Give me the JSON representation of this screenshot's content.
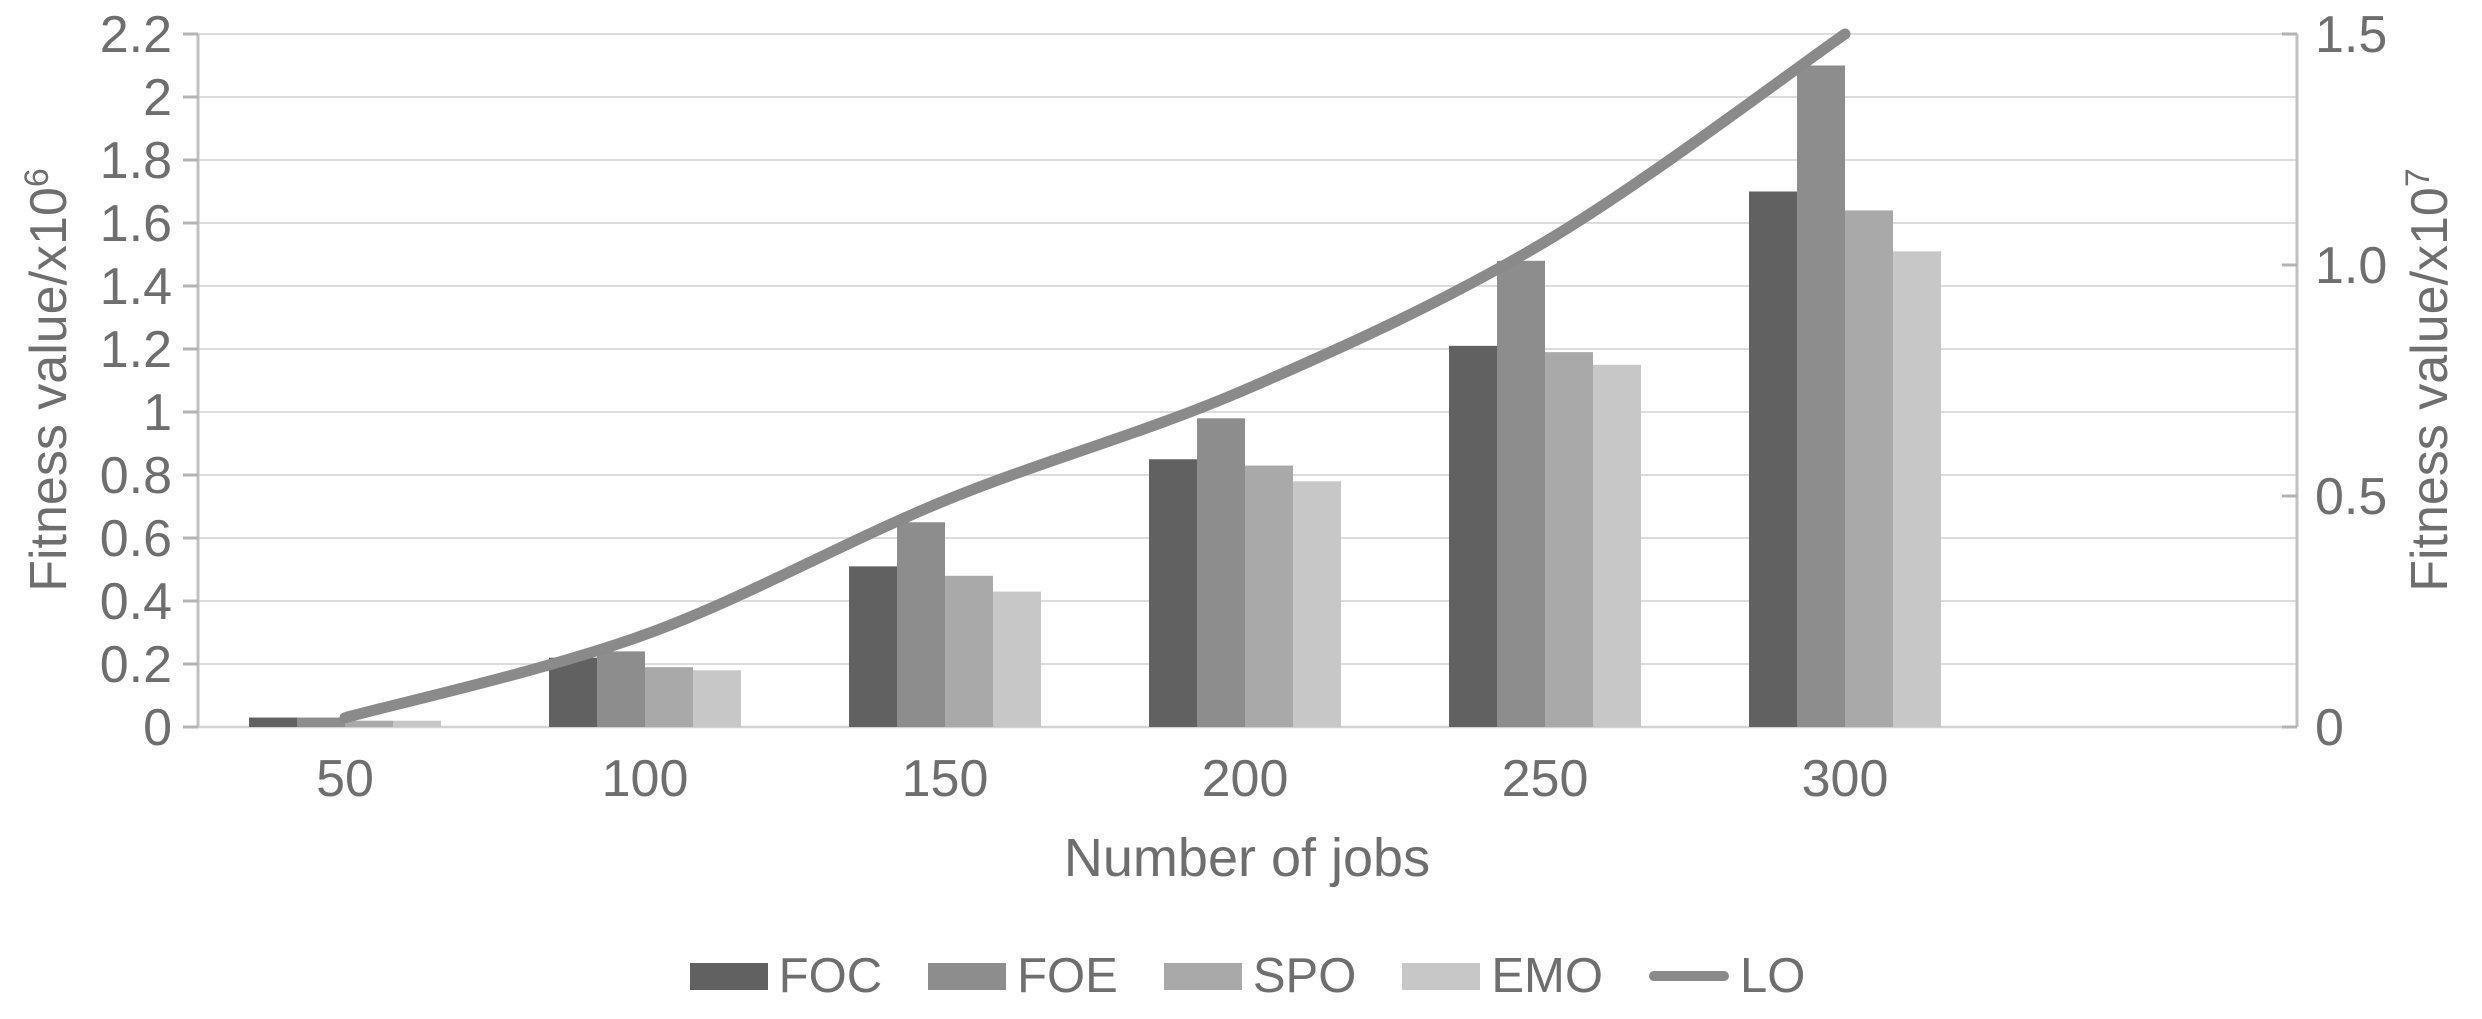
{
  "chart_data": {
    "type": "combo_bar_line",
    "title": "",
    "xlabel": "Number of jobs",
    "categories": [
      50,
      100,
      150,
      200,
      250,
      300
    ],
    "x_tick_labels": [
      "50",
      "100",
      "150",
      "200",
      "250",
      "300"
    ],
    "bar_series": [
      {
        "name": "FOC",
        "color": "#616161",
        "axis": "left",
        "values": [
          0.03,
          0.22,
          0.51,
          0.85,
          1.21,
          1.7
        ]
      },
      {
        "name": "FOE",
        "color": "#8d8d8d",
        "axis": "left",
        "values": [
          0.03,
          0.24,
          0.65,
          0.98,
          1.48,
          2.1
        ]
      },
      {
        "name": "SPO",
        "color": "#a9a9a9",
        "axis": "left",
        "values": [
          0.02,
          0.19,
          0.48,
          0.83,
          1.19,
          1.64
        ]
      },
      {
        "name": "EMO",
        "color": "#c7c7c7",
        "axis": "left",
        "values": [
          0.02,
          0.18,
          0.43,
          0.78,
          1.15,
          1.51
        ]
      }
    ],
    "line_series": {
      "name": "LO",
      "color": "#8a8a8a",
      "axis": "right",
      "values": [
        0.02,
        0.2,
        0.49,
        0.73,
        1.05,
        1.5
      ]
    },
    "left_axis": {
      "title_base": "Fitness value/x10",
      "title_exp": "6",
      "min": 0,
      "max": 2.2,
      "tick_step": 0.2,
      "tick_labels": [
        "0",
        "0.2",
        "0.4",
        "0.6",
        "0.8",
        "1",
        "1.2",
        "1.4",
        "1.6",
        "1.8",
        "2",
        "2.2"
      ],
      "tick_values": [
        0,
        0.2,
        0.4,
        0.6,
        0.8,
        1.0,
        1.2,
        1.4,
        1.6,
        1.8,
        2.0,
        2.2
      ]
    },
    "right_axis": {
      "title_base": "Fitness value/x10",
      "title_exp": "7",
      "min": 0,
      "max": 1.5,
      "tick_step": 0.5,
      "tick_labels": [
        "0",
        "0.5",
        "1.0",
        "1.5"
      ],
      "tick_values": [
        0,
        0.5,
        1.0,
        1.5
      ]
    },
    "legend": [
      "FOC",
      "FOE",
      "SPO",
      "EMO",
      "LO"
    ],
    "legend_position": "bottom",
    "grid": true,
    "colors": {
      "grid": "#dcdcdc",
      "axis": "#c0c0c0",
      "tick": "#b3b3b3",
      "text": "#6e6e6e",
      "background": "#ffffff"
    }
  }
}
